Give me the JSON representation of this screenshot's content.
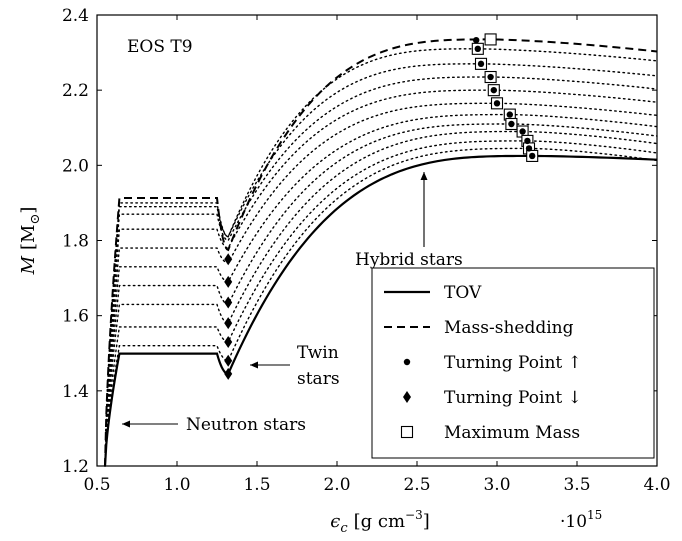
{
  "chart_data": {
    "type": "line",
    "title": "",
    "xlabel": "ϵ_c [g cm^-3]",
    "xlabel_parts": {
      "sym": "ϵ",
      "sub": "c",
      "unit": "[g cm",
      "exp": "−3",
      "close": "]"
    },
    "ylabel_parts": {
      "sym": "M",
      "unit_open": "[M",
      "unit_sub": "⊙",
      "unit_close": "]"
    },
    "x_multiplier": {
      "base": "·10",
      "exp": "15"
    },
    "xlim": [
      0.5,
      4.0
    ],
    "ylim": [
      1.2,
      2.4
    ],
    "xticks": [
      "0.5",
      "1.0",
      "1.5",
      "2.0",
      "2.5",
      "3.0",
      "3.5",
      "4.0"
    ],
    "yticks": [
      "1.2",
      "1.4",
      "1.6",
      "1.8",
      "2.0",
      "2.2",
      "2.4"
    ],
    "xtick_values": [
      0.5,
      1.0,
      1.5,
      2.0,
      2.5,
      3.0,
      3.5,
      4.0
    ],
    "ytick_values": [
      1.2,
      1.4,
      1.6,
      1.8,
      2.0,
      2.2,
      2.4
    ],
    "eos_label": "EOS T9",
    "annotations": [
      {
        "text": "Hybrid stars"
      },
      {
        "text": "Twin"
      },
      {
        "text": "stars"
      },
      {
        "text": "Neutron stars"
      }
    ],
    "legend": {
      "position": "bottom-right",
      "entries": [
        {
          "label": "TOV",
          "style": "solid"
        },
        {
          "label": "Mass-shedding",
          "style": "dashed"
        },
        {
          "label": "Turning Point ↑",
          "style": "dot"
        },
        {
          "label": "Turning Point ↓",
          "style": "diamond"
        },
        {
          "label": "Maximum Mass",
          "style": "square"
        }
      ]
    },
    "series": [
      {
        "name": "TOV",
        "style": "solid",
        "plateau": 1.499,
        "dip": 1.445,
        "max": 2.025,
        "max_x": 3.22
      },
      {
        "style": "dotted",
        "plateau": 1.52,
        "dip": 1.48,
        "max": 2.045,
        "max_x": 3.2
      },
      {
        "style": "dotted",
        "plateau": 1.57,
        "dip": 1.53,
        "max": 2.065,
        "max_x": 3.19
      },
      {
        "style": "dotted",
        "plateau": 1.63,
        "dip": 1.58,
        "max": 2.09,
        "max_x": 3.16
      },
      {
        "style": "dotted",
        "plateau": 1.68,
        "dip": 1.63,
        "max": 2.11,
        "max_x": 3.09
      },
      {
        "style": "dotted",
        "plateau": 1.73,
        "dip": 1.69,
        "max": 2.135,
        "max_x": 3.08
      },
      {
        "style": "dotted",
        "plateau": 1.78,
        "dip": 1.74,
        "max": 2.165,
        "max_x": 3.0
      },
      {
        "style": "dotted",
        "plateau": 1.83,
        "dip": 1.78,
        "max": 2.2,
        "max_x": 2.98
      },
      {
        "style": "dotted",
        "plateau": 1.87,
        "dip": 1.8,
        "max": 2.235,
        "max_x": 2.96
      },
      {
        "style": "dotted",
        "plateau": 1.89,
        "dip": 1.81,
        "max": 2.27,
        "max_x": 2.9
      },
      {
        "style": "dotted",
        "plateau": 1.9,
        "dip": 1.81,
        "max": 2.31,
        "max_x": 2.88
      },
      {
        "name": "Mass-shedding",
        "style": "dashed",
        "plateau": 1.913,
        "dip": 1.775,
        "max": 2.335,
        "max_x": 2.96
      }
    ],
    "turning_points_up": [
      {
        "x": 2.87,
        "y": 2.333
      }
    ],
    "turning_points_down": [
      {
        "x": 1.32,
        "y": 1.445
      },
      {
        "x": 1.32,
        "y": 1.48
      },
      {
        "x": 1.32,
        "y": 1.53
      },
      {
        "x": 1.32,
        "y": 1.58
      },
      {
        "x": 1.32,
        "y": 1.635
      },
      {
        "x": 1.32,
        "y": 1.69
      },
      {
        "x": 1.32,
        "y": 1.75
      }
    ],
    "maximum_mass": [
      {
        "x": 2.96,
        "y": 2.335
      },
      {
        "x": 2.88,
        "y": 2.31
      },
      {
        "x": 2.9,
        "y": 2.27
      },
      {
        "x": 2.96,
        "y": 2.235
      },
      {
        "x": 2.98,
        "y": 2.2
      },
      {
        "x": 3.0,
        "y": 2.165
      },
      {
        "x": 3.08,
        "y": 2.135
      },
      {
        "x": 3.09,
        "y": 2.11
      },
      {
        "x": 3.16,
        "y": 2.09
      },
      {
        "x": 3.19,
        "y": 2.065
      },
      {
        "x": 3.2,
        "y": 2.045
      },
      {
        "x": 3.22,
        "y": 2.025
      }
    ]
  }
}
